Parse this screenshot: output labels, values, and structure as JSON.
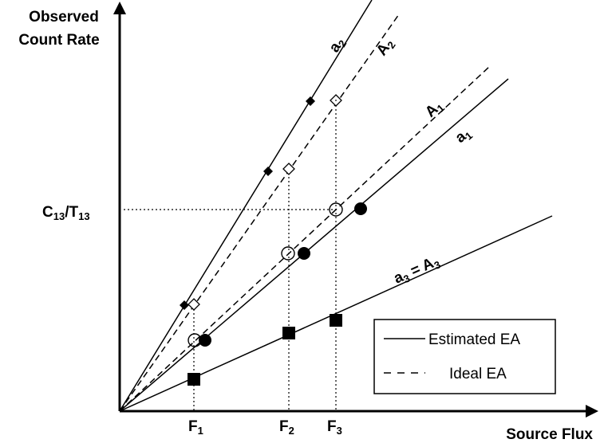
{
  "axes": {
    "y_label_line1": "Observed",
    "y_label_line2": "Count Rate",
    "x_label": "Source Flux",
    "y_tick_main": "C",
    "y_tick_sub1": "13",
    "y_tick_slash": "/T",
    "y_tick_sub2": "13",
    "x_ticks": [
      {
        "main": "F",
        "sub": "1"
      },
      {
        "main": "F",
        "sub": "2"
      },
      {
        "main": "F",
        "sub": "3"
      }
    ]
  },
  "lines": {
    "a2": {
      "main": "a",
      "sub": "2"
    },
    "A2": {
      "main": "A",
      "sub": "2"
    },
    "A1": {
      "main": "A",
      "sub": "1"
    },
    "a1": {
      "main": "a",
      "sub": "1"
    },
    "a3": {
      "main1": "a",
      "sub1": "3",
      "eq": " = A",
      "sub2": "3"
    }
  },
  "legend": {
    "estimated": "Estimated EA",
    "ideal": "Ideal EA"
  },
  "colors": {
    "ink": "#000000",
    "background": "#ffffff"
  }
}
